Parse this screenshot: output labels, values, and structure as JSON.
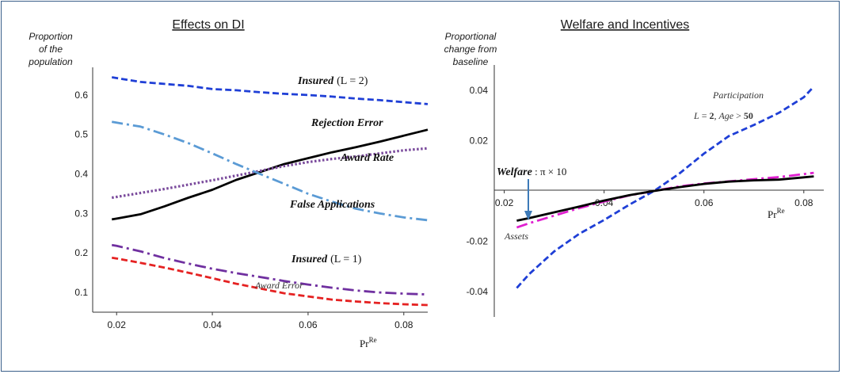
{
  "chart_data": [
    {
      "type": "line",
      "title": "Effects on DI",
      "ylabel": [
        "Proportion",
        "of the",
        "population"
      ],
      "xlabel": "Pr",
      "xlabel_sup": "Re",
      "xlim": [
        0.015,
        0.085
      ],
      "ylim": [
        0.05,
        0.67
      ],
      "xticks": [
        0.02,
        0.04,
        0.06,
        0.08
      ],
      "xtick_labels": [
        "0.02",
        "0.04",
        "0.06",
        "0.08"
      ],
      "yticks": [
        0.1,
        0.2,
        0.3,
        0.4,
        0.5,
        0.6
      ],
      "ytick_labels": [
        "0.1",
        "0.2",
        "0.3",
        "0.4",
        "0.5",
        "0.6"
      ],
      "series": [
        {
          "name": "Insured (L = 2)",
          "color": "#1f3fd6",
          "dash": "dash",
          "x": [
            0.019,
            0.02,
            0.025,
            0.03,
            0.035,
            0.04,
            0.045,
            0.05,
            0.055,
            0.06,
            0.065,
            0.07,
            0.075,
            0.08,
            0.085
          ],
          "y": [
            0.645,
            0.643,
            0.633,
            0.628,
            0.623,
            0.615,
            0.612,
            0.607,
            0.603,
            0.6,
            0.596,
            0.591,
            0.587,
            0.582,
            0.577
          ]
        },
        {
          "name": "Rejection Error",
          "color": "#000000",
          "dash": "solid",
          "x": [
            0.019,
            0.02,
            0.025,
            0.03,
            0.035,
            0.04,
            0.045,
            0.05,
            0.055,
            0.06,
            0.065,
            0.07,
            0.075,
            0.08,
            0.085
          ],
          "y": [
            0.285,
            0.287,
            0.298,
            0.318,
            0.34,
            0.36,
            0.385,
            0.405,
            0.425,
            0.44,
            0.455,
            0.468,
            0.482,
            0.497,
            0.512
          ]
        },
        {
          "name": "Award Rate",
          "color": "#7a4a9c",
          "dash": "dot",
          "x": [
            0.019,
            0.02,
            0.025,
            0.03,
            0.035,
            0.04,
            0.045,
            0.05,
            0.055,
            0.06,
            0.065,
            0.07,
            0.075,
            0.08,
            0.085
          ],
          "y": [
            0.34,
            0.342,
            0.352,
            0.362,
            0.373,
            0.384,
            0.396,
            0.408,
            0.42,
            0.43,
            0.438,
            0.444,
            0.452,
            0.46,
            0.465
          ]
        },
        {
          "name": "False Applications",
          "color": "#5b9bd5",
          "dash": "dashdot",
          "x": [
            0.019,
            0.02,
            0.025,
            0.03,
            0.035,
            0.04,
            0.045,
            0.05,
            0.055,
            0.06,
            0.065,
            0.07,
            0.075,
            0.08,
            0.085
          ],
          "y": [
            0.532,
            0.53,
            0.52,
            0.5,
            0.478,
            0.452,
            0.425,
            0.4,
            0.375,
            0.35,
            0.33,
            0.312,
            0.3,
            0.29,
            0.283
          ]
        },
        {
          "name": "Insured (L = 1)",
          "color": "#7030a0",
          "dash": "dashdot",
          "x": [
            0.019,
            0.02,
            0.025,
            0.03,
            0.035,
            0.04,
            0.045,
            0.05,
            0.055,
            0.06,
            0.065,
            0.07,
            0.075,
            0.08,
            0.085
          ],
          "y": [
            0.22,
            0.218,
            0.204,
            0.187,
            0.173,
            0.16,
            0.149,
            0.139,
            0.129,
            0.12,
            0.112,
            0.105,
            0.1,
            0.097,
            0.095
          ]
        },
        {
          "name": "Award Error",
          "color": "#e52222",
          "dash": "dash",
          "x": [
            0.019,
            0.02,
            0.025,
            0.03,
            0.035,
            0.04,
            0.045,
            0.05,
            0.055,
            0.06,
            0.065,
            0.07,
            0.075,
            0.08,
            0.085
          ],
          "y": [
            0.188,
            0.186,
            0.175,
            0.163,
            0.15,
            0.136,
            0.122,
            0.11,
            0.098,
            0.09,
            0.082,
            0.077,
            0.073,
            0.07,
            0.068
          ]
        }
      ],
      "annotations": {
        "insured2": "Insured",
        "insured2_math": "(L = 2)",
        "rejection": "Rejection Error",
        "award_rate": "Award Rate",
        "false_apps": "False Applications",
        "insured1": "Insured",
        "insured1_math": "(L = 1)",
        "award_error": "Award Error"
      }
    },
    {
      "type": "line",
      "title": "Welfare and Incentives",
      "ylabel": [
        "Proportional",
        "change from",
        "baseline"
      ],
      "xlabel": "Pr",
      "xlabel_sup": "Re",
      "xlim": [
        0.018,
        0.084
      ],
      "ylim": [
        -0.05,
        0.05
      ],
      "xticks": [
        0.02,
        0.04,
        0.06,
        0.08
      ],
      "xtick_labels": [
        "0.02",
        "0.04",
        "0.06",
        "0.08"
      ],
      "yticks": [
        -0.04,
        -0.02,
        0.02,
        0.04
      ],
      "ytick_labels": [
        "-0.04",
        "-0.02",
        "0.02",
        "0.04"
      ],
      "series": [
        {
          "name": "Participation",
          "color": "#1f3fd6",
          "dash": "dash",
          "x": [
            0.0225,
            0.025,
            0.03,
            0.035,
            0.04,
            0.045,
            0.05,
            0.055,
            0.06,
            0.065,
            0.07,
            0.075,
            0.08,
            0.082
          ],
          "y": [
            -0.0385,
            -0.033,
            -0.024,
            -0.017,
            -0.0115,
            -0.0055,
            0.0,
            0.0068,
            0.0148,
            0.0218,
            0.0262,
            0.031,
            0.0372,
            0.0414
          ]
        },
        {
          "name": "Assets",
          "color": "#e020d0",
          "dash": "dashdot",
          "x": [
            0.0225,
            0.025,
            0.03,
            0.035,
            0.04,
            0.045,
            0.05,
            0.055,
            0.06,
            0.065,
            0.07,
            0.075,
            0.08,
            0.082
          ],
          "y": [
            -0.0145,
            -0.0128,
            -0.0098,
            -0.0068,
            -0.0042,
            -0.0018,
            0.0,
            0.0018,
            0.003,
            0.0038,
            0.0047,
            0.0055,
            0.0067,
            0.0072
          ]
        },
        {
          "name": "Welfare",
          "color": "#000000",
          "dash": "solid",
          "x": [
            0.0225,
            0.025,
            0.03,
            0.035,
            0.04,
            0.045,
            0.05,
            0.055,
            0.06,
            0.065,
            0.07,
            0.075,
            0.08,
            0.082
          ],
          "y": [
            -0.0118,
            -0.0108,
            -0.0085,
            -0.0062,
            -0.0038,
            -0.0017,
            0.0,
            0.0015,
            0.0028,
            0.0037,
            0.0042,
            0.0045,
            0.0054,
            0.0058
          ]
        }
      ],
      "annotations": {
        "participation": "Participation",
        "participation_cond_a": "L",
        "participation_cond_b": " = ",
        "participation_cond_c": "2",
        "participation_cond_d": ", ",
        "participation_cond_e": "Age",
        "participation_cond_f": " > ",
        "participation_cond_g": "50",
        "welfare": "Welfare",
        "welfare_math": " : π × 10",
        "assets": "Assets"
      }
    }
  ]
}
